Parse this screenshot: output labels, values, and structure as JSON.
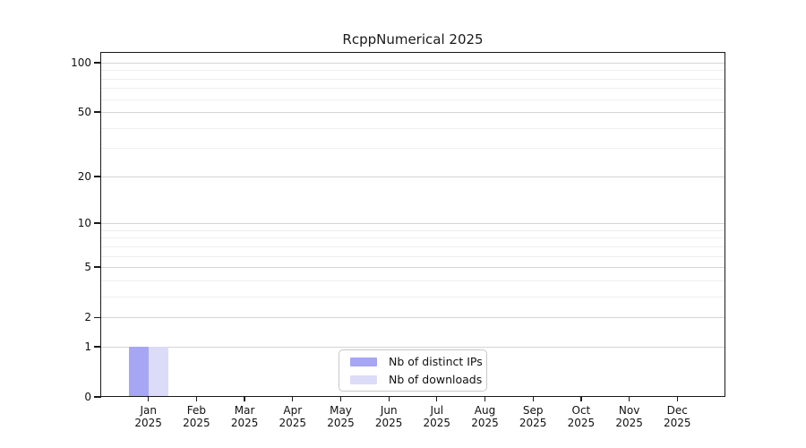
{
  "chart_data": {
    "type": "bar",
    "title": "RcppNumerical 2025",
    "categories": [
      "Jan",
      "Feb",
      "Mar",
      "Apr",
      "May",
      "Jun",
      "Jul",
      "Aug",
      "Sep",
      "Oct",
      "Nov",
      "Dec"
    ],
    "category_sublabel": "2025",
    "series": [
      {
        "name": "Nb of distinct IPs",
        "color": "#a6a6f4",
        "values": [
          1,
          0,
          0,
          0,
          0,
          0,
          0,
          0,
          0,
          0,
          0,
          0
        ]
      },
      {
        "name": "Nb of downloads",
        "color": "#dcdcf8",
        "values": [
          1,
          0,
          0,
          0,
          0,
          0,
          0,
          0,
          0,
          0,
          0,
          0
        ]
      }
    ],
    "yaxis": {
      "scale": "log1p",
      "ticks": [
        0,
        1,
        2,
        5,
        10,
        20,
        50,
        100
      ],
      "minor_gridlines": [
        3,
        4,
        6,
        7,
        8,
        9,
        30,
        40,
        60,
        70,
        80,
        90
      ],
      "top_value": 116,
      "ylim": [
        0,
        100
      ]
    },
    "xlabel": "",
    "ylabel": "",
    "legend": {
      "position": "lower center"
    },
    "colors": {
      "spine": "#1a1a1a",
      "major_grid": "#d4d4d4",
      "minor_grid": "#eeeeee",
      "background": "#ffffff"
    }
  }
}
